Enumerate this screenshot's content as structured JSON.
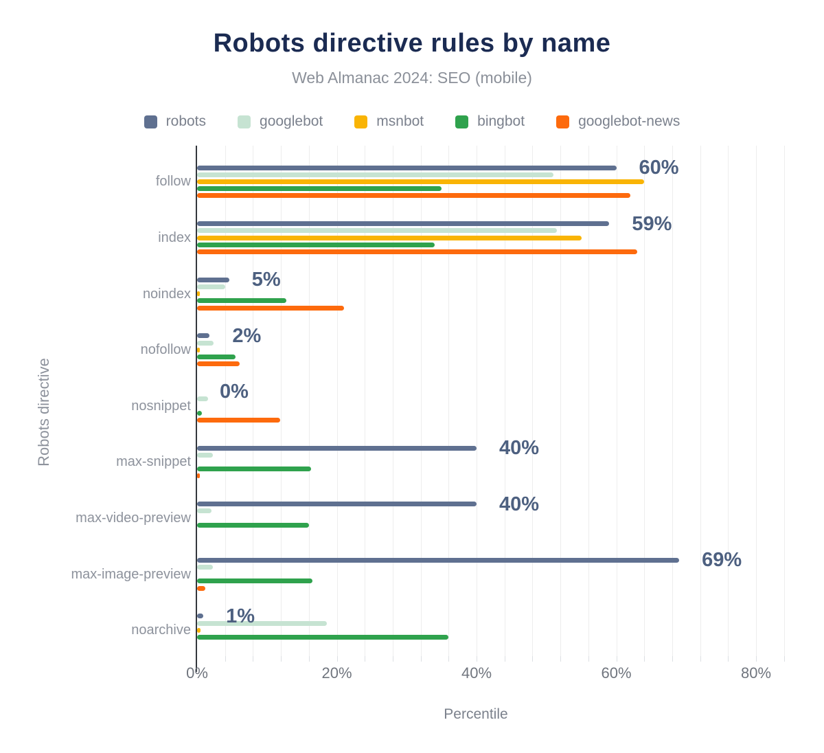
{
  "header": {
    "title": "Robots directive rules by name",
    "subtitle": "Web Almanac 2024: SEO (mobile)"
  },
  "chart_data": {
    "type": "bar",
    "orientation": "horizontal",
    "title": "Robots directive rules by name",
    "subtitle": "Web Almanac 2024: SEO (mobile)",
    "xlabel": "Percentile",
    "ylabel": "Robots directive",
    "xlim": [
      0,
      85
    ],
    "x_tick_values": [
      0,
      20,
      40,
      60,
      80
    ],
    "x_ticks": [
      "0%",
      "20%",
      "40%",
      "60%",
      "80%"
    ],
    "minor_grid_step": 4,
    "grid": "vertical-minor",
    "legend_position": "top",
    "categories": [
      "follow",
      "index",
      "noindex",
      "nofollow",
      "nosnippet",
      "max-snippet",
      "max-video-preview",
      "max-image-preview",
      "noarchive"
    ],
    "series": [
      {
        "name": "robots",
        "color": "#5f7090",
        "values": [
          60,
          59,
          4.6,
          1.8,
          0,
          40,
          40,
          69,
          0.9
        ]
      },
      {
        "name": "googlebot",
        "color": "#c6e3d2",
        "values": [
          51,
          51.5,
          4,
          2.4,
          1.6,
          2.3,
          2.1,
          2.3,
          18.6
        ]
      },
      {
        "name": "msnbot",
        "color": "#f9b405",
        "values": [
          64,
          55,
          0.4,
          0.4,
          0,
          0,
          0,
          0,
          0.5
        ]
      },
      {
        "name": "bingbot",
        "color": "#2fa24d",
        "values": [
          35,
          34,
          12.8,
          5.5,
          0.7,
          16.3,
          16,
          16.5,
          36
        ]
      },
      {
        "name": "googlebot-news",
        "color": "#fd6a0d",
        "values": [
          62,
          63,
          21,
          6.1,
          11.9,
          0.4,
          0,
          1.2,
          0
        ]
      }
    ],
    "data_labels": {
      "series": "robots",
      "labels": [
        "60%",
        "59%",
        "5%",
        "2%",
        "0%",
        "40%",
        "40%",
        "69%",
        "1%"
      ]
    }
  }
}
